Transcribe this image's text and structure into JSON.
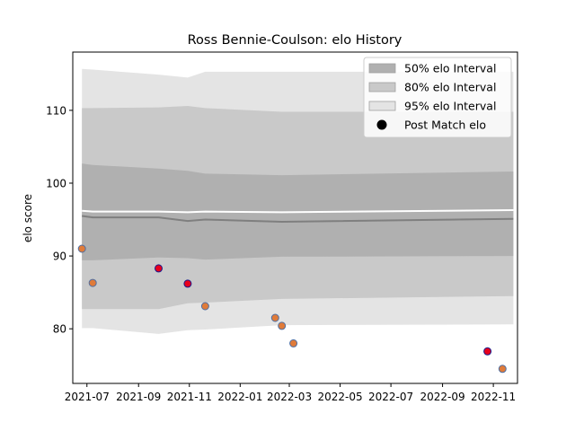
{
  "chart_data": {
    "type": "area",
    "title": "Ross Bennie-Coulson: elo History",
    "xlabel": "",
    "ylabel": "elo score",
    "ylim": [
      72.5,
      118
    ],
    "y_ticks": [
      80,
      90,
      100,
      110
    ],
    "x_range": [
      "2021-06-14",
      "2022-11-30"
    ],
    "x_ticks": [
      "2021-07",
      "2021-09",
      "2021-11",
      "2022-01",
      "2022-03",
      "2022-05",
      "2022-07",
      "2022-09",
      "2022-11"
    ],
    "grid": false,
    "legend_position": "top-right",
    "legend": [
      {
        "label": "50% elo Interval",
        "key": "band50"
      },
      {
        "label": "80% elo Interval",
        "key": "band80"
      },
      {
        "label": "95% elo Interval",
        "key": "band95"
      },
      {
        "label": "Post Match elo",
        "key": "points"
      }
    ],
    "colors": {
      "band50": "#b0b0b0",
      "band80": "#c9c9c9",
      "band95": "#e4e4e4",
      "mean_line": "#7f7f7f",
      "median_line": "#ffffff",
      "point_fill": "#e07b39",
      "point_edge": "#4f6fa3",
      "highlight_fill": "#e8001c",
      "highlight_edge": "#1a1a8c",
      "legend_marker": "#000000"
    },
    "intervals": {
      "dates": [
        "2021-06-25",
        "2021-07-08",
        "2021-09-25",
        "2021-10-30",
        "2021-11-20",
        "2022-02-20",
        "2022-11-25"
      ],
      "mean": [
        95.5,
        95.3,
        95.3,
        94.8,
        95.0,
        94.7,
        95.1
      ],
      "median": [
        96.2,
        96.1,
        96.1,
        96.0,
        96.1,
        96.0,
        96.3
      ],
      "band50": {
        "upper": [
          102.7,
          102.5,
          102.0,
          101.7,
          101.3,
          101.1,
          101.6
        ],
        "lower": [
          89.4,
          89.4,
          89.8,
          89.7,
          89.5,
          89.9,
          90.0
        ]
      },
      "band80": {
        "upper": [
          110.3,
          110.3,
          110.4,
          110.6,
          110.3,
          109.8,
          109.8
        ],
        "lower": [
          82.7,
          82.7,
          82.7,
          83.5,
          83.6,
          84.1,
          84.5
        ]
      },
      "band95": {
        "upper": [
          115.7,
          115.6,
          114.9,
          114.5,
          115.3,
          115.3,
          115.3
        ],
        "lower": [
          80.1,
          80.1,
          79.3,
          79.8,
          79.9,
          80.5,
          80.6
        ]
      }
    },
    "points": [
      {
        "date": "2021-06-25",
        "elo": 91.0,
        "highlight": false
      },
      {
        "date": "2021-07-08",
        "elo": 86.3,
        "highlight": false
      },
      {
        "date": "2021-09-25",
        "elo": 88.3,
        "highlight": true
      },
      {
        "date": "2021-10-30",
        "elo": 86.2,
        "highlight": true
      },
      {
        "date": "2021-11-20",
        "elo": 83.1,
        "highlight": false
      },
      {
        "date": "2022-02-12",
        "elo": 81.5,
        "highlight": false
      },
      {
        "date": "2022-02-20",
        "elo": 80.4,
        "highlight": false
      },
      {
        "date": "2022-03-06",
        "elo": 78.0,
        "highlight": false
      },
      {
        "date": "2022-10-25",
        "elo": 76.9,
        "highlight": true
      },
      {
        "date": "2022-11-12",
        "elo": 74.5,
        "highlight": false
      }
    ]
  }
}
